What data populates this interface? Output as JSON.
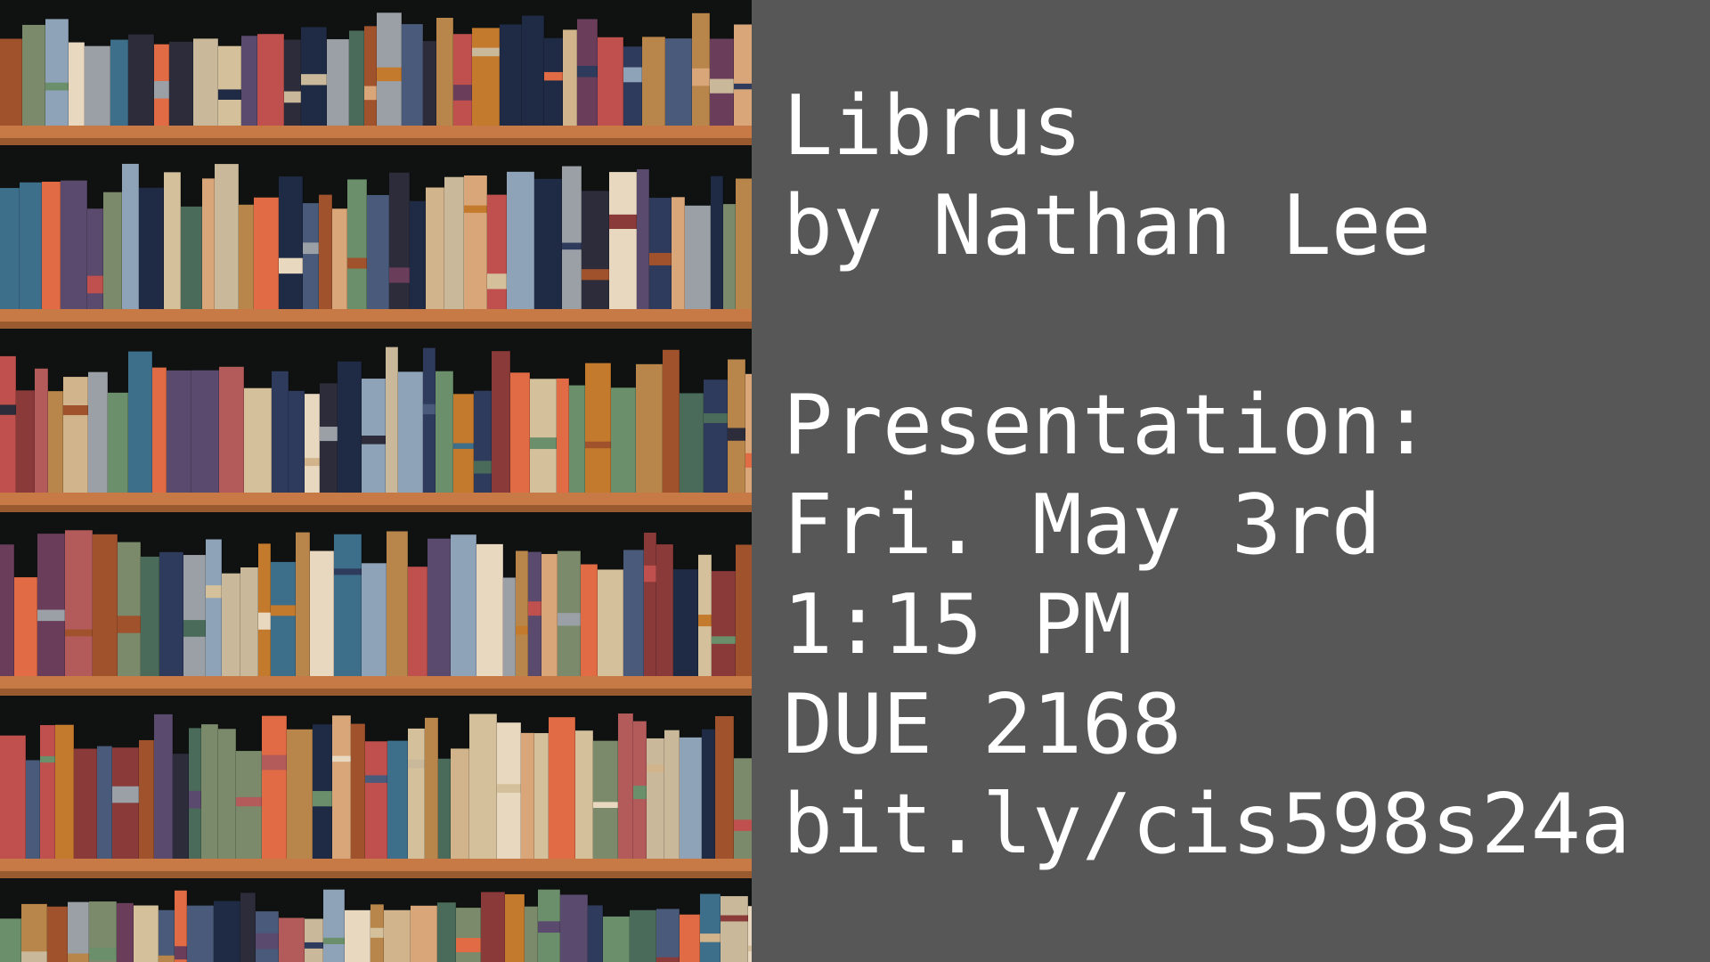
{
  "slide": {
    "title": [
      "Librus",
      "by Nathan Lee"
    ],
    "details": [
      "Presentation:",
      "Fri. May 3rd",
      "1:15 PM",
      "DUE 2168",
      "bit.ly/cis598s24a"
    ]
  }
}
